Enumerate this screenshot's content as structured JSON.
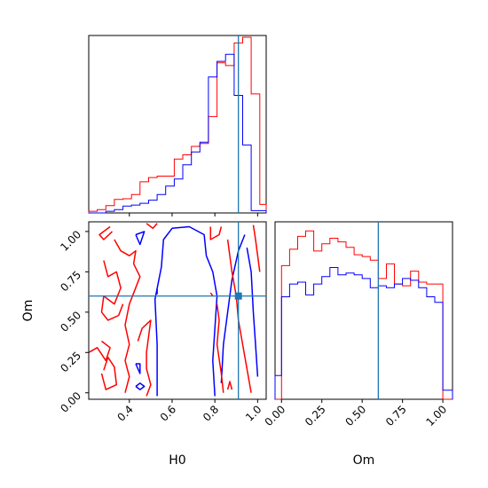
{
  "chart_data": {
    "type": "corner",
    "parameters": [
      "H0",
      "Om"
    ],
    "truth": {
      "H0": 0.91,
      "Om": 0.6
    },
    "colors": {
      "run_a": "#ff0000",
      "run_b": "#0000ff",
      "truth": "#1f77b4",
      "axes": "#000000"
    },
    "panels": {
      "h0_hist": {
        "type": "step-histogram",
        "xlim": [
          0.21,
          1.04
        ],
        "bin_edges": [
          0.21,
          0.25,
          0.29,
          0.33,
          0.37,
          0.41,
          0.45,
          0.49,
          0.53,
          0.57,
          0.61,
          0.65,
          0.69,
          0.73,
          0.77,
          0.81,
          0.85,
          0.89,
          0.93,
          0.97,
          1.01,
          1.04
        ],
        "series": [
          {
            "color": "red",
            "values": [
              0.6,
              1.2,
              2.6,
              4.8,
              5.0,
              6.5,
              11.0,
              12.5,
              13.0,
              13.0,
              19.0,
              20.5,
              23.5,
              24.5,
              34.0,
              53.0,
              52.0,
              60.0,
              62.0,
              42.0,
              3.0
            ]
          },
          {
            "color": "blue",
            "values": [
              0,
              0,
              0.6,
              1.2,
              2.4,
              2.8,
              3.4,
              4.5,
              6.5,
              9.5,
              12.0,
              17.0,
              21.5,
              25.0,
              48.0,
              53.5,
              56.0,
              41.5,
              24.0,
              0.8,
              0.8
            ]
          }
        ],
        "x_ticks": [
          0.4,
          0.6,
          0.8,
          1.0
        ]
      },
      "om_hist": {
        "type": "step-histogram",
        "xlim": [
          -0.04,
          1.06
        ],
        "bin_edges": [
          -0.04,
          0.0,
          0.05,
          0.1,
          0.15,
          0.2,
          0.25,
          0.3,
          0.35,
          0.4,
          0.45,
          0.5,
          0.55,
          0.6,
          0.65,
          0.7,
          0.75,
          0.8,
          0.85,
          0.9,
          0.95,
          1.0,
          1.06
        ],
        "series": [
          {
            "color": "red",
            "values": [
              0,
              0.73,
              0.82,
              0.89,
              0.92,
              0.81,
              0.85,
              0.88,
              0.86,
              0.83,
              0.79,
              0.78,
              0.76,
              0.66,
              0.74,
              0.63,
              0.62,
              0.7,
              0.64,
              0.63,
              0.63,
              0
            ]
          },
          {
            "color": "blue",
            "values": [
              0.13,
              0.56,
              0.63,
              0.64,
              0.57,
              0.63,
              0.67,
              0.72,
              0.68,
              0.69,
              0.68,
              0.66,
              0.61,
              0.62,
              0.61,
              0.63,
              0.66,
              0.65,
              0.61,
              0.56,
              0.53,
              0.05
            ]
          }
        ],
        "x_ticks": [
          0.0,
          0.25,
          0.5,
          0.75,
          1.0
        ],
        "x_tick_labels": [
          "0.00",
          "0.25",
          "0.50",
          "0.75",
          "1.00"
        ]
      },
      "joint": {
        "type": "contour",
        "xlim": [
          0.21,
          1.04
        ],
        "ylim": [
          -0.04,
          1.06
        ],
        "x_ticks": [
          0.4,
          0.6,
          0.8,
          1.0
        ],
        "y_ticks": [
          0.0,
          0.25,
          0.5,
          0.75,
          1.0
        ],
        "y_tick_labels": [
          "0.00",
          "0.25",
          "0.50",
          "0.75",
          "1.00"
        ],
        "contours": [
          {
            "color": "blue",
            "points": [
              [
                0.53,
                -0.02
              ],
              [
                0.53,
                0.3
              ],
              [
                0.52,
                0.58
              ],
              [
                0.55,
                0.78
              ],
              [
                0.56,
                0.95
              ],
              [
                0.6,
                1.02
              ],
              [
                0.68,
                1.03
              ],
              [
                0.75,
                0.98
              ],
              [
                0.76,
                0.85
              ]
            ]
          },
          {
            "color": "blue",
            "points": [
              [
                0.76,
                0.85
              ],
              [
                0.79,
                0.75
              ],
              [
                0.81,
                0.6
              ],
              [
                0.8,
                0.4
              ],
              [
                0.79,
                0.2
              ],
              [
                0.8,
                -0.02
              ]
            ]
          },
          {
            "color": "blue",
            "points": [
              [
                0.83,
                0.06
              ],
              [
                0.84,
                0.3
              ],
              [
                0.86,
                0.5
              ],
              [
                0.88,
                0.7
              ],
              [
                0.91,
                0.88
              ],
              [
                0.94,
                0.98
              ]
            ]
          },
          {
            "color": "blue",
            "points": [
              [
                0.95,
                0.9
              ],
              [
                0.97,
                0.75
              ],
              [
                0.98,
                0.5
              ],
              [
                0.99,
                0.3
              ],
              [
                1.0,
                0.1
              ]
            ]
          },
          {
            "color": "blue",
            "points": [
              [
                0.43,
                0.18
              ],
              [
                0.45,
                0.12
              ],
              [
                0.45,
                0.18
              ],
              [
                0.43,
                0.18
              ]
            ]
          },
          {
            "color": "blue",
            "points": [
              [
                0.43,
                0.04
              ],
              [
                0.45,
                0.02
              ],
              [
                0.47,
                0.04
              ],
              [
                0.45,
                0.06
              ],
              [
                0.43,
                0.04
              ]
            ]
          },
          {
            "color": "blue",
            "points": [
              [
                0.43,
                0.98
              ],
              [
                0.45,
                0.92
              ],
              [
                0.47,
                1.0
              ],
              [
                0.43,
                0.98
              ]
            ]
          },
          {
            "color": "red",
            "points": [
              [
                0.32,
                1.0
              ],
              [
                0.28,
                0.95
              ],
              [
                0.26,
                0.98
              ],
              [
                0.31,
                1.03
              ]
            ]
          },
          {
            "color": "red",
            "points": [
              [
                0.28,
                0.82
              ],
              [
                0.3,
                0.72
              ],
              [
                0.34,
                0.75
              ],
              [
                0.36,
                0.65
              ],
              [
                0.33,
                0.55
              ],
              [
                0.28,
                0.6
              ],
              [
                0.27,
                0.5
              ],
              [
                0.3,
                0.45
              ],
              [
                0.35,
                0.48
              ],
              [
                0.37,
                0.55
              ]
            ]
          },
          {
            "color": "red",
            "points": [
              [
                0.21,
                0.25
              ],
              [
                0.25,
                0.28
              ],
              [
                0.29,
                0.2
              ],
              [
                0.31,
                0.28
              ],
              [
                0.27,
                0.32
              ]
            ]
          },
          {
            "color": "red",
            "points": [
              [
                0.27,
                0.12
              ],
              [
                0.29,
                0.02
              ],
              [
                0.34,
                0.05
              ],
              [
                0.33,
                0.16
              ],
              [
                0.3,
                0.22
              ],
              [
                0.28,
                0.14
              ]
            ]
          },
          {
            "color": "red",
            "points": [
              [
                0.33,
                0.95
              ],
              [
                0.36,
                0.88
              ],
              [
                0.4,
                0.85
              ],
              [
                0.43,
                0.88
              ],
              [
                0.42,
                0.8
              ],
              [
                0.45,
                0.72
              ],
              [
                0.4,
                0.55
              ],
              [
                0.38,
                0.42
              ],
              [
                0.4,
                0.3
              ],
              [
                0.38,
                0.2
              ],
              [
                0.4,
                0.1
              ],
              [
                0.38,
                0.0
              ]
            ]
          },
          {
            "color": "red",
            "points": [
              [
                0.44,
                0.32
              ],
              [
                0.46,
                0.4
              ],
              [
                0.5,
                0.45
              ],
              [
                0.49,
                0.35
              ],
              [
                0.48,
                0.25
              ],
              [
                0.48,
                0.15
              ],
              [
                0.5,
                0.05
              ],
              [
                0.48,
                -0.02
              ]
            ]
          },
          {
            "color": "red",
            "points": [
              [
                0.48,
                1.05
              ],
              [
                0.51,
                1.02
              ],
              [
                0.53,
                1.05
              ]
            ]
          },
          {
            "color": "red",
            "points": [
              [
                0.78,
                1.03
              ],
              [
                0.78,
                0.95
              ],
              [
                0.82,
                0.98
              ],
              [
                0.83,
                1.03
              ]
            ]
          },
          {
            "color": "red",
            "points": [
              [
                0.81,
                0.55
              ],
              [
                0.82,
                0.45
              ],
              [
                0.81,
                0.3
              ],
              [
                0.83,
                0.12
              ],
              [
                0.84,
                0.0
              ]
            ]
          },
          {
            "color": "red",
            "points": [
              [
                0.86,
                0.95
              ],
              [
                0.87,
                0.85
              ],
              [
                0.88,
                0.75
              ],
              [
                0.9,
                0.6
              ],
              [
                0.91,
                0.45
              ],
              [
                0.93,
                0.3
              ],
              [
                0.95,
                0.15
              ],
              [
                0.97,
                0.0
              ]
            ]
          },
          {
            "color": "red",
            "points": [
              [
                0.98,
                1.04
              ],
              [
                0.99,
                0.95
              ],
              [
                1.0,
                0.85
              ],
              [
                1.01,
                0.75
              ]
            ]
          },
          {
            "color": "red",
            "points": [
              [
                0.78,
                0.62
              ],
              [
                0.79,
                0.6
              ]
            ]
          },
          {
            "color": "red",
            "points": [
              [
                0.86,
                0.02
              ],
              [
                0.87,
                0.07
              ],
              [
                0.88,
                0.02
              ]
            ]
          }
        ]
      }
    }
  }
}
